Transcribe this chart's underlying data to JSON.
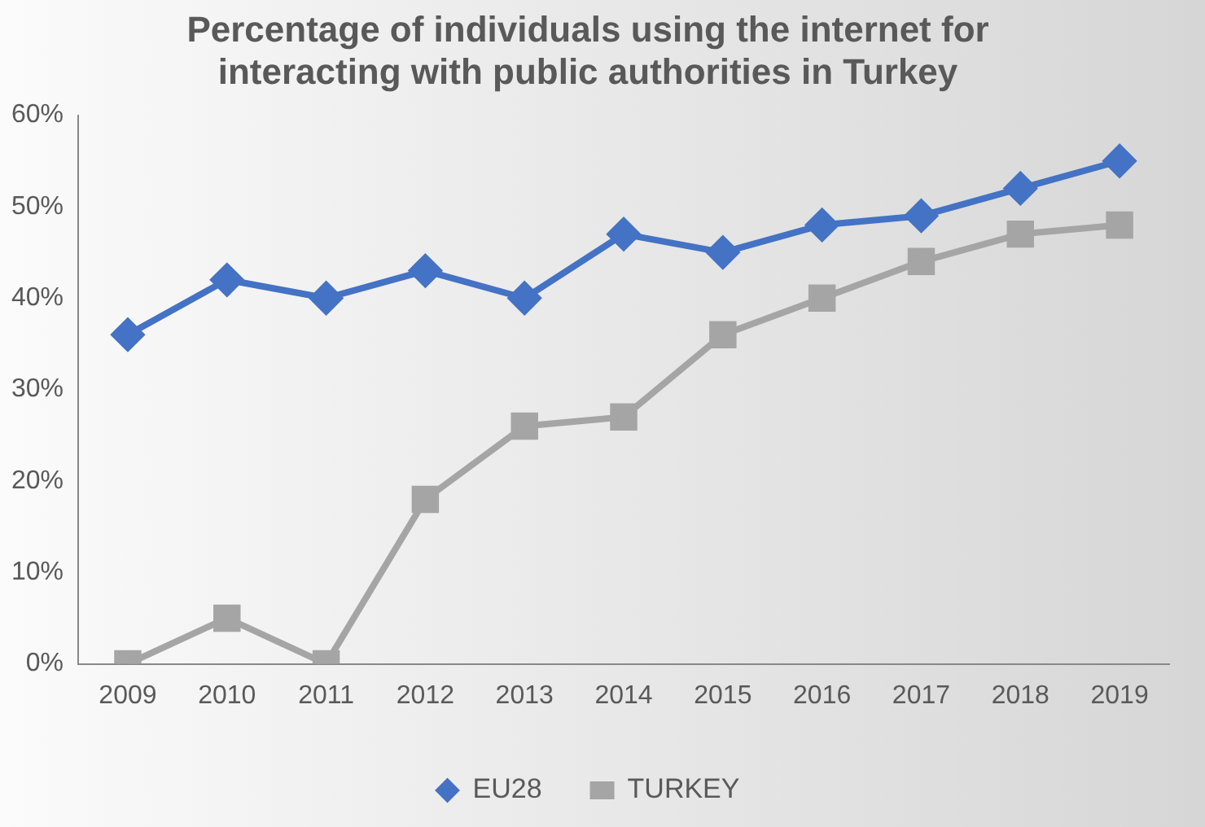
{
  "chart_data": {
    "type": "line",
    "title": "Percentage of individuals using the internet for interacting with public authorities in Turkey",
    "categories": [
      "2009",
      "2010",
      "2011",
      "2012",
      "2013",
      "2014",
      "2015",
      "2016",
      "2017",
      "2018",
      "2019"
    ],
    "series": [
      {
        "name": "EU28",
        "color": "#4472c4",
        "marker": "diamond",
        "values": [
          36,
          42,
          40,
          43,
          40,
          47,
          45,
          48,
          49,
          52,
          55
        ]
      },
      {
        "name": "TURKEY",
        "color": "#a5a5a5",
        "marker": "square",
        "values": [
          0,
          5,
          0,
          18,
          26,
          27,
          36,
          40,
          44,
          47,
          48
        ]
      }
    ],
    "ylim": [
      0,
      60
    ],
    "yticks": [
      {
        "value": 0,
        "label": "0%"
      },
      {
        "value": 10,
        "label": "10%"
      },
      {
        "value": 20,
        "label": "20%"
      },
      {
        "value": 30,
        "label": "30%"
      },
      {
        "value": 40,
        "label": "40%"
      },
      {
        "value": 50,
        "label": "50%"
      },
      {
        "value": 60,
        "label": "60%"
      }
    ],
    "grid": false,
    "legend": "bottom",
    "line_style": "solid"
  }
}
